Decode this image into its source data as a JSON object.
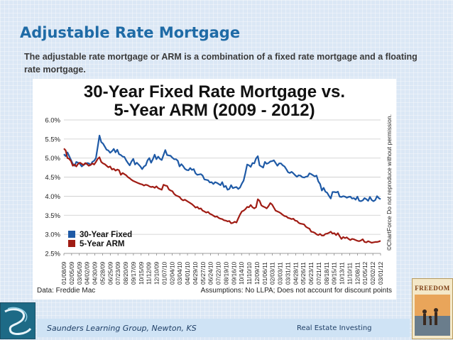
{
  "slide": {
    "title": "Adjustable Rate Mortgage",
    "subtitle": "The adjustable rate mortgage or ARM is a combination of a fixed rate mortgage and a floating rate mortgage."
  },
  "footer": {
    "left": "Saunders Learning Group, Newton, KS",
    "right": "Real Estate Investing"
  },
  "book": {
    "title": "FREEDOM"
  },
  "colors": {
    "fixed": "#1f5aa6",
    "arm": "#a01c14",
    "title_blue": "#1f6ba6"
  },
  "chart_data": {
    "type": "line",
    "title_line1": "30-Year Fixed Rate Mortgage vs.",
    "title_line2": "5-Year ARM (2009 - 2012)",
    "source": "Data: Freddie Mac",
    "assumptions": "Assumptions: No LLPA; Does not account for discount points",
    "copyright": "©ChartForce  Do not reproduce without permission.",
    "ylim": [
      2.5,
      6.0
    ],
    "yticks": [
      "6.0%",
      "5.5%",
      "5.0%",
      "4.5%",
      "4.0%",
      "3.5%",
      "3.0%",
      "2.5%"
    ],
    "ytick_values": [
      6.0,
      5.5,
      5.0,
      4.5,
      4.0,
      3.5,
      3.0,
      2.5
    ],
    "xticks": [
      "01/08/09",
      "02/05/09",
      "03/05/09",
      "04/02/09",
      "04/30/09",
      "05/28/09",
      "06/25/09",
      "07/23/09",
      "08/20/09",
      "09/17/09",
      "10/15/09",
      "11/12/09",
      "12/10/09",
      "01/07/10",
      "02/04/10",
      "03/04/10",
      "04/01/10",
      "04/29/10",
      "05/27/10",
      "06/24/10",
      "07/22/10",
      "08/19/10",
      "09/16/10",
      "10/14/10",
      "11/10/10",
      "12/09/10",
      "01/06/11",
      "02/03/11",
      "03/03/11",
      "03/31/11",
      "04/28/11",
      "05/26/11",
      "06/23/11",
      "07/21/11",
      "08/18/11",
      "09/15/11",
      "10/13/11",
      "11/10/11",
      "12/08/11",
      "01/05/12",
      "02/02/12",
      "03/01/12"
    ],
    "legend": [
      "30-Year Fixed",
      "5-Year ARM"
    ],
    "legend_position": "bottom-left",
    "grid": true,
    "series": [
      {
        "name": "30-Year Fixed",
        "color": "#1f5aa6",
        "values": [
          5.1,
          5.05,
          5.15,
          5.05,
          4.95,
          4.85,
          4.8,
          4.9,
          4.88,
          4.85,
          4.78,
          4.82,
          4.85,
          4.87,
          4.86,
          4.82,
          4.9,
          4.93,
          5.0,
          5.29,
          5.59,
          5.42,
          5.38,
          5.3,
          5.22,
          5.2,
          5.14,
          5.18,
          5.24,
          5.15,
          5.22,
          5.1,
          5.08,
          5.04,
          5.03,
          4.94,
          4.87,
          4.81,
          4.91,
          4.98,
          4.83,
          4.88,
          4.83,
          4.78,
          4.71,
          4.78,
          4.81,
          4.94,
          5.0,
          4.88,
          4.97,
          5.09,
          4.97,
          5.04,
          4.98,
          4.95,
          5.08,
          5.21,
          5.08,
          5.07,
          5.06,
          5.01,
          4.97,
          4.97,
          4.93,
          4.78,
          4.84,
          4.79,
          4.72,
          4.69,
          4.68,
          4.74,
          4.69,
          4.71,
          4.6,
          4.56,
          4.57,
          4.58,
          4.54,
          4.44,
          4.43,
          4.42,
          4.36,
          4.37,
          4.32,
          4.37,
          4.35,
          4.32,
          4.29,
          4.37,
          4.24,
          4.27,
          4.17,
          4.19,
          4.29,
          4.21,
          4.23,
          4.24,
          4.19,
          4.23,
          4.33,
          4.41,
          4.61,
          4.83,
          4.81,
          4.77,
          4.87,
          4.86,
          4.99,
          5.05,
          4.81,
          4.78,
          4.75,
          4.9,
          4.85,
          4.87,
          4.91,
          4.92,
          4.94,
          4.87,
          4.8,
          4.86,
          4.86,
          4.81,
          4.78,
          4.71,
          4.63,
          4.61,
          4.64,
          4.6,
          4.55,
          4.51,
          4.55,
          4.54,
          4.5,
          4.49,
          4.51,
          4.52,
          4.6,
          4.58,
          4.55,
          4.52,
          4.54,
          4.39,
          4.32,
          4.15,
          4.22,
          4.12,
          4.09,
          4.01,
          3.94,
          4.11,
          4.11,
          4.1,
          4.12,
          3.99,
          3.98,
          4.0,
          3.99,
          3.96,
          3.98,
          3.99,
          3.94,
          3.95,
          3.91,
          3.99,
          3.88,
          3.87,
          3.89,
          3.95,
          3.92,
          3.88,
          3.98,
          3.9,
          3.87,
          3.9,
          4.0,
          3.95,
          3.92
        ]
      },
      {
        "name": "5-Year ARM",
        "color": "#a01c14",
        "values": [
          5.25,
          5.2,
          5.0,
          4.98,
          4.92,
          4.8,
          4.83,
          4.78,
          4.85,
          4.88,
          4.85,
          4.82,
          4.87,
          4.84,
          4.8,
          4.82,
          4.86,
          4.83,
          4.9,
          4.98,
          5.02,
          4.9,
          4.86,
          4.84,
          4.8,
          4.76,
          4.78,
          4.7,
          4.72,
          4.67,
          4.7,
          4.68,
          4.56,
          4.61,
          4.58,
          4.55,
          4.5,
          4.47,
          4.43,
          4.4,
          4.38,
          4.36,
          4.34,
          4.32,
          4.31,
          4.28,
          4.3,
          4.29,
          4.26,
          4.24,
          4.25,
          4.22,
          4.26,
          4.21,
          4.19,
          4.17,
          4.3,
          4.28,
          4.27,
          4.18,
          4.15,
          4.13,
          4.06,
          4.02,
          4.0,
          3.98,
          3.92,
          3.89,
          3.91,
          3.88,
          3.85,
          3.82,
          3.79,
          3.75,
          3.7,
          3.72,
          3.67,
          3.68,
          3.62,
          3.6,
          3.57,
          3.59,
          3.54,
          3.52,
          3.49,
          3.46,
          3.47,
          3.43,
          3.41,
          3.4,
          3.37,
          3.36,
          3.34,
          3.35,
          3.29,
          3.3,
          3.33,
          3.31,
          3.42,
          3.52,
          3.6,
          3.62,
          3.66,
          3.72,
          3.71,
          3.77,
          3.71,
          3.68,
          3.71,
          3.92,
          3.88,
          3.76,
          3.73,
          3.71,
          3.68,
          3.74,
          3.82,
          3.78,
          3.7,
          3.62,
          3.6,
          3.58,
          3.55,
          3.51,
          3.48,
          3.47,
          3.43,
          3.42,
          3.4,
          3.41,
          3.36,
          3.35,
          3.3,
          3.28,
          3.27,
          3.26,
          3.2,
          3.17,
          3.15,
          3.07,
          3.06,
          3.04,
          3.0,
          2.98,
          3.01,
          2.97,
          2.97,
          3.01,
          3.02,
          3.04,
          3.07,
          3.02,
          3.03,
          2.98,
          3.03,
          2.95,
          2.88,
          2.93,
          2.9,
          2.92,
          2.88,
          2.85,
          2.88,
          2.87,
          2.85,
          2.83,
          2.82,
          2.84,
          2.87,
          2.8,
          2.79,
          2.82,
          2.8,
          2.78,
          2.79,
          2.8,
          2.8,
          2.81,
          2.83
        ]
      }
    ]
  }
}
